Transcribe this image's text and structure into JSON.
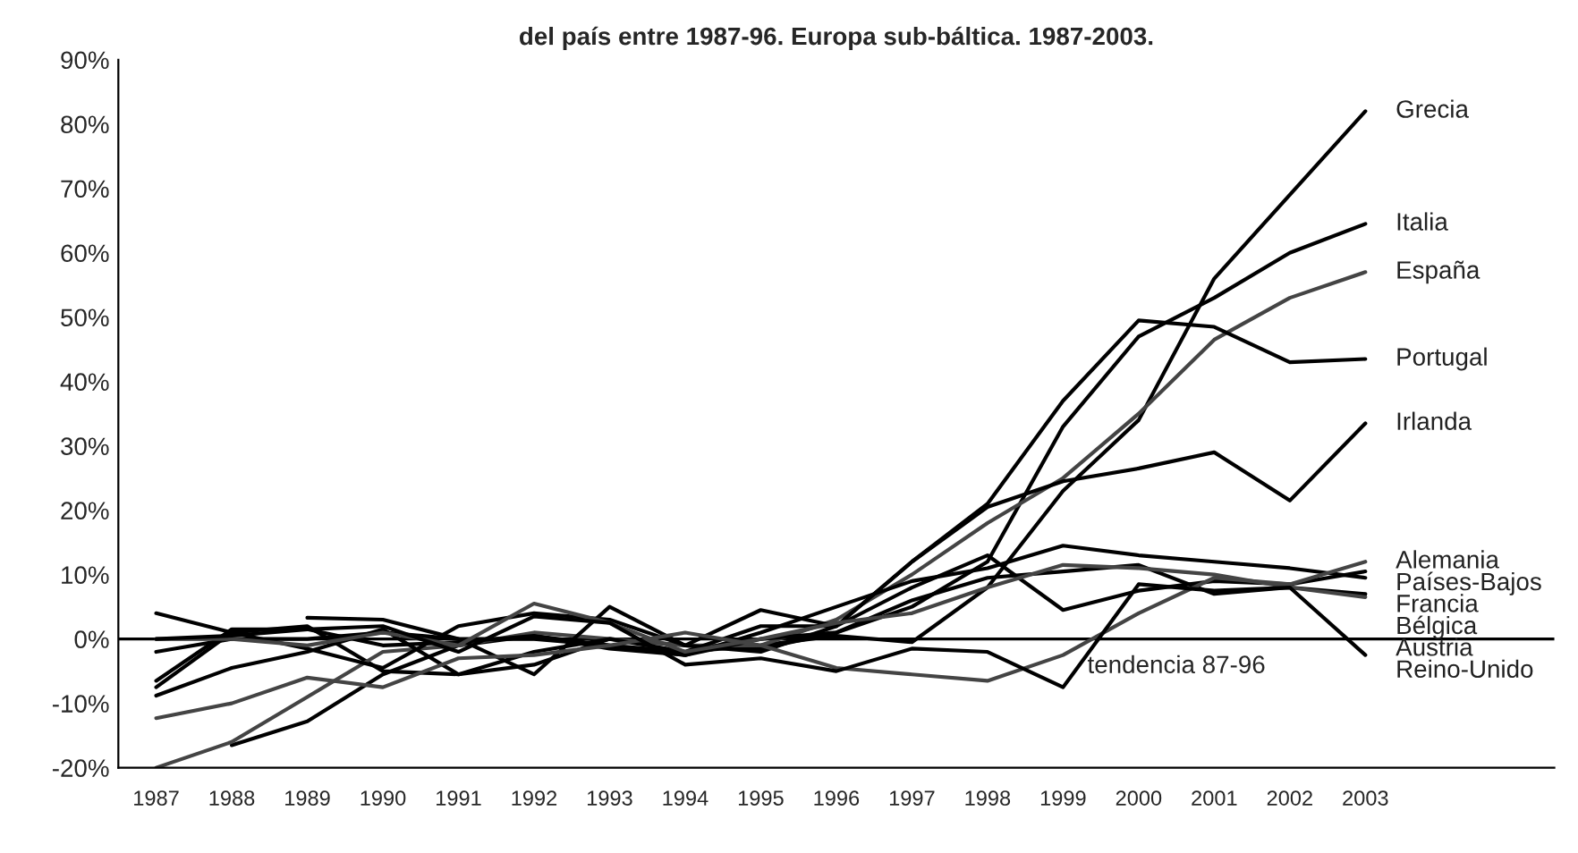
{
  "chart_data": {
    "type": "line",
    "title": "del país entre 1987-96. Europa sub-báltica. 1987-2003.",
    "categories": [
      "1987",
      "1988",
      "1989",
      "1990",
      "1991",
      "1992",
      "1993",
      "1994",
      "1995",
      "1996",
      "1997",
      "1998",
      "1999",
      "2000",
      "2001",
      "2002",
      "2003",
      null,
      null
    ],
    "ylim": [
      -20,
      90
    ],
    "yticks": [
      {
        "value": -20,
        "label": "-20%"
      },
      {
        "value": -10,
        "label": "-10%"
      },
      {
        "value": 0,
        "label": "0%"
      },
      {
        "value": 10,
        "label": "10%"
      },
      {
        "value": 20,
        "label": "20%"
      },
      {
        "value": 30,
        "label": "30%"
      },
      {
        "value": 40,
        "label": "40%"
      },
      {
        "value": 50,
        "label": "50%"
      },
      {
        "value": 60,
        "label": "60%"
      },
      {
        "value": 70,
        "label": "70%"
      },
      {
        "value": 80,
        "label": "80%"
      },
      {
        "value": 90,
        "label": "90%"
      }
    ],
    "grid": false,
    "legend": false,
    "line_style": "solid",
    "marker": "none",
    "ref_lines": [
      {
        "axis": "y",
        "value": 0,
        "label": "tendencia 87-96",
        "color": "#000000"
      }
    ],
    "series": [
      {
        "name": "Grecia",
        "color": "#000000",
        "values": [
          null,
          -16.5,
          -12.8,
          -5.5,
          -1,
          0.5,
          -1,
          -2,
          -1,
          0.5,
          -0.5,
          8,
          23,
          34,
          56,
          69,
          82,
          null,
          null
        ]
      },
      {
        "name": "Italia",
        "color": "#000000",
        "values": [
          -7.5,
          1,
          2,
          -5,
          -5.5,
          -4,
          0,
          -1,
          -1.5,
          1,
          5,
          12,
          33,
          47,
          53,
          60,
          64.5,
          null,
          null
        ]
      },
      {
        "name": "España",
        "color": "#444444",
        "values": [
          -20,
          -16,
          -9,
          -2,
          -1,
          1,
          0,
          -1,
          -1,
          3,
          10,
          18,
          25,
          35,
          46.5,
          53,
          57,
          null,
          null
        ]
      },
      {
        "name": "Portugal",
        "color": "#000000",
        "values": [
          -8.8,
          -4.5,
          -2,
          1.5,
          -5.5,
          -2,
          0,
          -2,
          2,
          2,
          12,
          21,
          37,
          49.5,
          48.5,
          43,
          43.5,
          null,
          null
        ]
      },
      {
        "name": "Irlanda",
        "color": "#000000",
        "values": [
          4,
          1,
          -1.5,
          -4.5,
          2,
          4,
          3,
          -1,
          4.5,
          2,
          12,
          20.5,
          24.5,
          26.5,
          29,
          21.5,
          33.5,
          null,
          null
        ]
      },
      {
        "name": "Francia",
        "color": "#000000",
        "values": [
          -2,
          0,
          0,
          1,
          0,
          0,
          -1,
          -2.5,
          1,
          5,
          9,
          11,
          14.5,
          13,
          12,
          11,
          9.5,
          null,
          null
        ]
      },
      {
        "name": "Países-Bajos",
        "color": "#000000",
        "values": [
          null,
          null,
          3.3,
          3,
          0,
          -5.5,
          5,
          -1,
          -2,
          2,
          8,
          13,
          4.5,
          7.5,
          9,
          8.5,
          10.5,
          null,
          null
        ]
      },
      {
        "name": "Bélgica",
        "color": "#000000",
        "values": [
          -6.5,
          1.5,
          1.5,
          -1,
          -0.5,
          0.5,
          -1.5,
          -2.5,
          0,
          1,
          6,
          9.5,
          10.5,
          11.5,
          7,
          8,
          7,
          null,
          null
        ]
      },
      {
        "name": "Austria",
        "color": "#444444",
        "values": [
          0,
          0,
          -1,
          1,
          -1,
          5.5,
          2.5,
          -2,
          0,
          2.5,
          4,
          8,
          11.5,
          11,
          10,
          8,
          6.5,
          null,
          null
        ]
      },
      {
        "name": "Alemania",
        "color": "#444444",
        "values": [
          -12.3,
          -10,
          -6,
          -7.5,
          -3,
          -2.5,
          -1,
          1,
          -1,
          -4.5,
          -5.5,
          -6.5,
          -2.5,
          4,
          9.5,
          8.5,
          12,
          null,
          null
        ]
      },
      {
        "name": "Reino-Unido",
        "color": "#000000",
        "values": [
          0,
          0.5,
          1.5,
          2,
          -2,
          3.5,
          2.5,
          -4,
          -3,
          -5,
          -1.5,
          -2,
          -7.5,
          8.5,
          7.5,
          8,
          -2.5,
          null,
          null
        ]
      }
    ]
  }
}
